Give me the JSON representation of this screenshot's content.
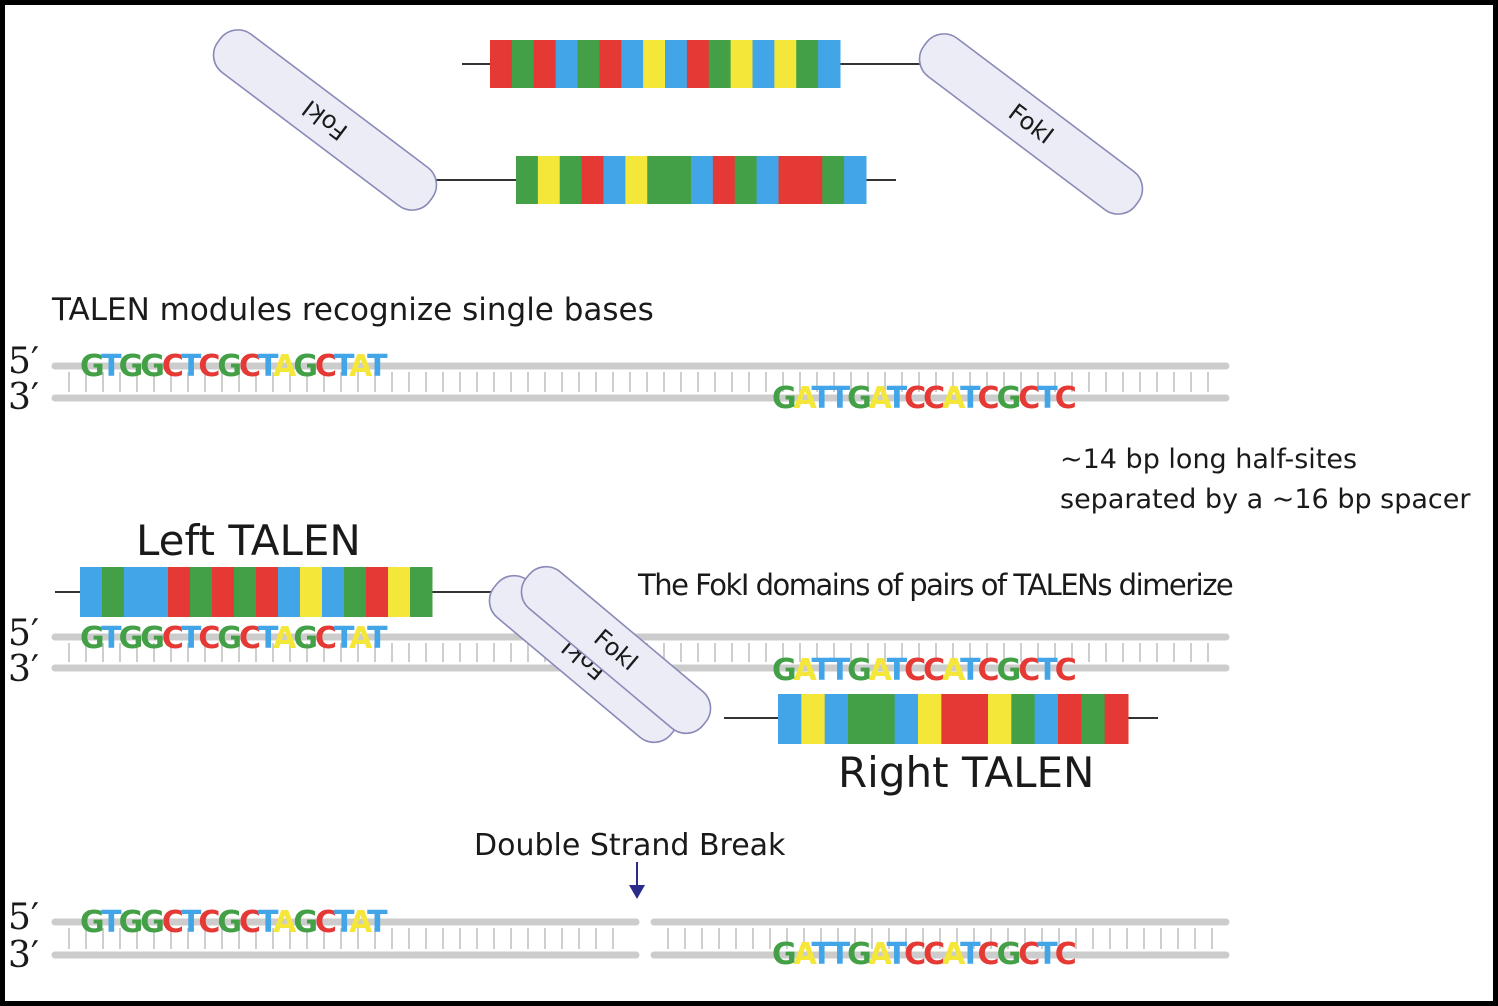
{
  "colors": {
    "A": "#f5e63a",
    "C": "#e53935",
    "G": "#43a047",
    "T": "#42a5e8",
    "backbone": "#cccccc",
    "linker": "#333333",
    "fokl_fill": "#ececf7",
    "fokl_stroke": "#8a8ab8",
    "arrow": "#2b2b8c"
  },
  "strand_labels": {
    "five": "5′",
    "three": "3′"
  },
  "fokl_label": "FokI",
  "sequences": {
    "left_top": "GTGGCTCGCTAGCTAT",
    "right_bottom": "GATTGATCCATCGCTC"
  },
  "module_sequences": {
    "top_talen": "CGCTGCTATCGATAGT",
    "bottom_talen": "GAGCTAGGTCGTCCGT",
    "left_talen": "TGTTCGCGCTATGCAG",
    "right_talen": "TATGGTACCAGTCGC"
  },
  "labels": {
    "modules_text": "TALEN modules recognize single bases",
    "half_sites_line1": "~14 bp long half-sites",
    "half_sites_line2": "separated by a ~16 bp spacer",
    "left_talen": "Left TALEN",
    "right_talen": "Right TALEN",
    "dimerize_text": "The FokI domains of pairs of TALENs dimerize",
    "dsb_text": "Double Strand Break"
  }
}
